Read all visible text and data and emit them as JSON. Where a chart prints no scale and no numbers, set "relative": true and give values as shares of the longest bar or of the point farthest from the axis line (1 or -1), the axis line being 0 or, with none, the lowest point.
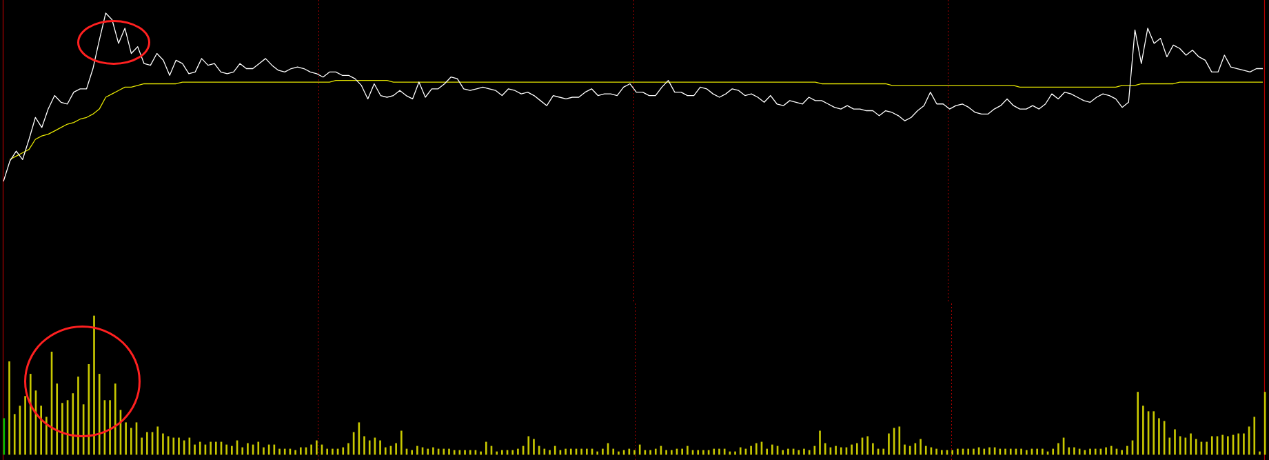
{
  "chart_data": [
    {
      "type": "line",
      "relative": true,
      "grid": "x",
      "legend": false,
      "marker": "none",
      "line_style": "solid",
      "categories": [
        null,
        null,
        null,
        null,
        null,
        null,
        null,
        null,
        null,
        null,
        null,
        null,
        null,
        null,
        null,
        null,
        null,
        null,
        null,
        null,
        null,
        null,
        null,
        null,
        null,
        null,
        null,
        null,
        null,
        null,
        null,
        null,
        null,
        null,
        null,
        null,
        null,
        null,
        null,
        null,
        null,
        null,
        null,
        null,
        null,
        null,
        null,
        null,
        null,
        null,
        null,
        null,
        null,
        null,
        null,
        null,
        null,
        null,
        null,
        null,
        null,
        null,
        null,
        null,
        null,
        null,
        null,
        null,
        null,
        null,
        null,
        null,
        null,
        null,
        null,
        null,
        null,
        null,
        null,
        null,
        null,
        null,
        null,
        null,
        null,
        null,
        null,
        null,
        null,
        null,
        null,
        null,
        null,
        null,
        null,
        null,
        null,
        null,
        null,
        null,
        null,
        null,
        null,
        null,
        null,
        null,
        null,
        null,
        null,
        null,
        null,
        null,
        null,
        null,
        null,
        null,
        null,
        null,
        null,
        null,
        null,
        null,
        null,
        null,
        null,
        null,
        null,
        null,
        null,
        null,
        null,
        null,
        null,
        null,
        null,
        null,
        null,
        null,
        null,
        null,
        null,
        null,
        null,
        null,
        null,
        null,
        null,
        null,
        null,
        null,
        null,
        null,
        null,
        null,
        null,
        null,
        null,
        null,
        null,
        null,
        null,
        null,
        null,
        null,
        null,
        null,
        null,
        null,
        null,
        null,
        null,
        null,
        null,
        null,
        null,
        null,
        null,
        null,
        null,
        null,
        null,
        null,
        null,
        null,
        null,
        null,
        null,
        null,
        null,
        null,
        null,
        null,
        null,
        null,
        null,
        null,
        null,
        null
      ],
      "series": [
        {
          "color": "#ffffff",
          "values": [
            0,
            0.12,
            0.18,
            0.13,
            0.25,
            0.38,
            0.32,
            0.43,
            0.51,
            0.47,
            0.46,
            0.53,
            0.55,
            0.55,
            0.67,
            0.84,
            1,
            0.96,
            0.82,
            0.91,
            0.76,
            0.8,
            0.7,
            0.69,
            0.76,
            0.72,
            0.63,
            0.72,
            0.7,
            0.64,
            0.65,
            0.73,
            0.69,
            0.7,
            0.65,
            0.64,
            0.65,
            0.7,
            0.67,
            0.67,
            0.7,
            0.73,
            0.69,
            0.66,
            0.65,
            0.67,
            0.68,
            0.67,
            0.65,
            0.64,
            0.62,
            0.65,
            0.65,
            0.63,
            0.63,
            0.61,
            0.57,
            0.49,
            0.58,
            0.51,
            0.5,
            0.51,
            0.54,
            0.51,
            0.49,
            0.59,
            0.5,
            0.55,
            0.55,
            0.58,
            0.62,
            0.61,
            0.55,
            0.54,
            0.55,
            0.56,
            0.55,
            0.54,
            0.51,
            0.55,
            0.54,
            0.52,
            0.53,
            0.51,
            0.48,
            0.45,
            0.51,
            0.5,
            0.49,
            0.5,
            0.5,
            0.53,
            0.55,
            0.51,
            0.52,
            0.52,
            0.51,
            0.56,
            0.58,
            0.53,
            0.53,
            0.51,
            0.51,
            0.56,
            0.6,
            0.53,
            0.53,
            0.51,
            0.51,
            0.56,
            0.55,
            0.52,
            0.5,
            0.52,
            0.55,
            0.54,
            0.51,
            0.52,
            0.5,
            0.47,
            0.51,
            0.46,
            0.45,
            0.48,
            0.47,
            0.46,
            0.5,
            0.48,
            0.48,
            0.46,
            0.44,
            0.43,
            0.45,
            0.43,
            0.43,
            0.42,
            0.42,
            0.39,
            0.42,
            0.41,
            0.39,
            0.36,
            0.38,
            0.42,
            0.45,
            0.53,
            0.46,
            0.46,
            0.43,
            0.45,
            0.46,
            0.44,
            0.41,
            0.4,
            0.4,
            0.43,
            0.45,
            0.49,
            0.45,
            0.43,
            0.43,
            0.45,
            0.43,
            0.46,
            0.52,
            0.49,
            0.53,
            0.52,
            0.5,
            0.48,
            0.47,
            0.5,
            0.52,
            0.51,
            0.49,
            0.44,
            0.47,
            0.9,
            0.7,
            0.91,
            0.82,
            0.85,
            0.74,
            0.81,
            0.79,
            0.75,
            0.78,
            0.74,
            0.72,
            0.65,
            0.65,
            0.75,
            0.68,
            0.67,
            0.66,
            0.65,
            0.67,
            0.67
          ]
        },
        {
          "color": "#e6e600",
          "values": [
            null,
            0.13,
            0.15,
            0.17,
            0.19,
            0.25,
            0.27,
            0.28,
            0.3,
            0.32,
            0.34,
            0.35,
            0.37,
            0.38,
            0.4,
            0.43,
            0.5,
            0.52,
            0.54,
            0.56,
            0.56,
            0.57,
            0.58,
            0.58,
            0.58,
            0.58,
            0.58,
            0.58,
            0.59,
            0.59,
            0.59,
            0.59,
            0.59,
            0.59,
            0.59,
            0.59,
            0.59,
            0.59,
            0.59,
            0.59,
            0.59,
            0.59,
            0.59,
            0.59,
            0.59,
            0.59,
            0.59,
            0.59,
            0.59,
            0.59,
            0.59,
            0.59,
            0.6,
            0.6,
            0.6,
            0.6,
            0.6,
            0.6,
            0.6,
            0.6,
            0.6,
            0.59,
            0.59,
            0.59,
            0.59,
            0.59,
            0.59,
            0.59,
            0.59,
            0.59,
            0.59,
            0.59,
            0.59,
            0.59,
            0.59,
            0.59,
            0.59,
            0.59,
            0.59,
            0.59,
            0.59,
            0.59,
            0.59,
            0.59,
            0.59,
            0.59,
            0.59,
            0.59,
            0.59,
            0.59,
            0.59,
            0.59,
            0.59,
            0.59,
            0.59,
            0.59,
            0.59,
            0.59,
            0.59,
            0.59,
            0.59,
            0.59,
            0.59,
            0.59,
            0.59,
            0.59,
            0.59,
            0.59,
            0.59,
            0.59,
            0.59,
            0.59,
            0.59,
            0.59,
            0.59,
            0.59,
            0.59,
            0.59,
            0.59,
            0.59,
            0.59,
            0.59,
            0.59,
            0.59,
            0.59,
            0.59,
            0.59,
            0.59,
            0.58,
            0.58,
            0.58,
            0.58,
            0.58,
            0.58,
            0.58,
            0.58,
            0.58,
            0.58,
            0.58,
            0.57,
            0.57,
            0.57,
            0.57,
            0.57,
            0.57,
            0.57,
            0.57,
            0.57,
            0.57,
            0.57,
            0.57,
            0.57,
            0.57,
            0.57,
            0.57,
            0.57,
            0.57,
            0.57,
            0.57,
            0.56,
            0.56,
            0.56,
            0.56,
            0.56,
            0.56,
            0.56,
            0.56,
            0.56,
            0.56,
            0.56,
            0.56,
            0.56,
            0.56,
            0.56,
            0.56,
            0.57,
            0.57,
            0.57,
            0.58,
            0.58,
            0.58,
            0.58,
            0.58,
            0.58,
            0.59,
            0.59,
            0.59,
            0.59,
            0.59,
            0.59,
            0.59,
            0.59,
            0.59,
            0.59,
            0.59,
            0.59,
            0.59,
            0.59
          ]
        }
      ]
    },
    {
      "type": "bar",
      "relative": true,
      "grid": "x",
      "legend": false,
      "categories": [
        null,
        null,
        null,
        null,
        null,
        null,
        null,
        null,
        null,
        null,
        null,
        null,
        null,
        null,
        null,
        null,
        null,
        null,
        null,
        null,
        null,
        null,
        null,
        null,
        null,
        null,
        null,
        null,
        null,
        null,
        null,
        null,
        null,
        null,
        null,
        null,
        null,
        null,
        null,
        null,
        null,
        null,
        null,
        null,
        null,
        null,
        null,
        null,
        null,
        null,
        null,
        null,
        null,
        null,
        null,
        null,
        null,
        null,
        null,
        null,
        null,
        null,
        null,
        null,
        null,
        null,
        null,
        null,
        null,
        null,
        null,
        null,
        null,
        null,
        null,
        null,
        null,
        null,
        null,
        null,
        null,
        null,
        null,
        null,
        null,
        null,
        null,
        null,
        null,
        null,
        null,
        null,
        null,
        null,
        null,
        null,
        null,
        null,
        null,
        null,
        null,
        null,
        null,
        null,
        null,
        null,
        null,
        null,
        null,
        null,
        null,
        null,
        null,
        null,
        null,
        null,
        null,
        null,
        null,
        null,
        null,
        null,
        null,
        null,
        null,
        null,
        null,
        null,
        null,
        null,
        null,
        null,
        null,
        null,
        null,
        null,
        null,
        null,
        null,
        null,
        null,
        null,
        null,
        null,
        null,
        null,
        null,
        null,
        null,
        null,
        null,
        null,
        null,
        null,
        null,
        null,
        null,
        null,
        null,
        null,
        null,
        null,
        null,
        null,
        null,
        null,
        null,
        null,
        null,
        null,
        null,
        null,
        null,
        null,
        null,
        null,
        null,
        null,
        null,
        null,
        null,
        null,
        null,
        null,
        null,
        null,
        null,
        null,
        null,
        null,
        null,
        null,
        null,
        null,
        null,
        null,
        null,
        null,
        null,
        null,
        null,
        null,
        null,
        null,
        null,
        null,
        null,
        null,
        null,
        null,
        null,
        null,
        null,
        null,
        null,
        null,
        null,
        null,
        null,
        null,
        null,
        null,
        null,
        null,
        null,
        null,
        null,
        null,
        null,
        null,
        null,
        null,
        null,
        null,
        null,
        null,
        null,
        null,
        null
      ],
      "values": [
        0.26,
        0.67,
        0.29,
        0.35,
        0.42,
        0.58,
        0.46,
        0.35,
        0.27,
        0.74,
        0.51,
        0.37,
        0.39,
        0.44,
        0.56,
        0.36,
        0.65,
        1,
        0.58,
        0.39,
        0.39,
        0.51,
        0.32,
        0.23,
        0.19,
        0.23,
        0.12,
        0.16,
        0.16,
        0.2,
        0.15,
        0.13,
        0.12,
        0.12,
        0.1,
        0.12,
        0.07,
        0.09,
        0.07,
        0.09,
        0.09,
        0.09,
        0.07,
        0.06,
        0.1,
        0.05,
        0.08,
        0.07,
        0.09,
        0.05,
        0.07,
        0.07,
        0.04,
        0.04,
        0.04,
        0.03,
        0.05,
        0.05,
        0.07,
        0.1,
        0.07,
        0.04,
        0.04,
        0.04,
        0.05,
        0.08,
        0.16,
        0.23,
        0.13,
        0.1,
        0.12,
        0.1,
        0.05,
        0.06,
        0.08,
        0.17,
        0.04,
        0.03,
        0.06,
        0.05,
        0.04,
        0.05,
        0.04,
        0.04,
        0.04,
        0.03,
        0.03,
        0.03,
        0.03,
        0.03,
        0.02,
        0.09,
        0.06,
        0.02,
        0.03,
        0.03,
        0.03,
        0.04,
        0.06,
        0.13,
        0.11,
        0.06,
        0.04,
        0.03,
        0.06,
        0.03,
        0.04,
        0.04,
        0.04,
        0.04,
        0.04,
        0.04,
        0.02,
        0.04,
        0.08,
        0.04,
        0.02,
        0.03,
        0.04,
        0.03,
        0.07,
        0.03,
        0.03,
        0.04,
        0.06,
        0.03,
        0.03,
        0.04,
        0.04,
        0.06,
        0.03,
        0.03,
        0.03,
        0.03,
        0.04,
        0.04,
        0.04,
        0.02,
        0.02,
        0.05,
        0.04,
        0.06,
        0.08,
        0.09,
        0.04,
        0.07,
        0.06,
        0.03,
        0.04,
        0.04,
        0.03,
        0.04,
        0.03,
        0.06,
        0.17,
        0.08,
        0.05,
        0.06,
        0.05,
        0.05,
        0.07,
        0.08,
        0.12,
        0.13,
        0.08,
        0.04,
        0.04,
        0.15,
        0.19,
        0.2,
        0.07,
        0.06,
        0.08,
        0.11,
        0.06,
        0.05,
        0.04,
        0.03,
        0.03,
        0.03,
        0.04,
        0.04,
        0.04,
        0.04,
        0.05,
        0.04,
        0.05,
        0.05,
        0.04,
        0.04,
        0.04,
        0.04,
        0.04,
        0.03,
        0.04,
        0.04,
        0.04,
        0.02,
        0.04,
        0.08,
        0.12,
        0.05,
        0.05,
        0.04,
        0.03,
        0.04,
        0.04,
        0.04,
        0.05,
        0.06,
        0.04,
        0.03,
        0.06,
        0.1,
        0.45,
        0.35,
        0.31,
        0.31,
        0.26,
        0.24,
        0.12,
        0.18,
        0.13,
        0.12,
        0.15,
        0.11,
        0.09,
        0.09,
        0.13,
        0.13,
        0.14,
        0.13,
        0.14,
        0.15,
        0.15,
        0.2,
        0.27,
        0.02,
        0.45
      ],
      "colors": [
        "#00c000",
        "#c8c800",
        "#c8c800",
        "#c8c800",
        "#c8c800",
        "#c8c800",
        "#c8c800",
        "#c8c800",
        "#c8c800",
        "#c8c800",
        "#c8c800",
        "#c8c800",
        "#c8c800",
        "#c8c800",
        "#c8c800",
        "#c8c800",
        "#c8c800",
        "#c8c800",
        "#c8c800",
        "#c8c800",
        "#c8c800",
        "#c8c800",
        "#c8c800",
        "#c8c800",
        "#c8c800",
        "#c8c800",
        "#c8c800",
        "#c8c800",
        "#c8c800",
        "#c8c800",
        "#c8c800",
        "#c8c800",
        "#c8c800",
        "#c8c800",
        "#c8c800",
        "#c8c800",
        "#c8c800",
        "#c8c800",
        "#c8c800",
        "#c8c800",
        "#c8c800",
        "#c8c800",
        "#c8c800",
        "#c8c800",
        "#c8c800",
        "#c8c800",
        "#c8c800",
        "#c8c800",
        "#c8c800",
        "#c8c800",
        "#c8c800",
        "#c8c800",
        "#c8c800",
        "#c8c800",
        "#c8c800",
        "#c8c800",
        "#c8c800",
        "#c8c800",
        "#c8c800",
        "#c8c800",
        "#c8c800",
        "#c8c800",
        "#c8c800",
        "#c8c800",
        "#c8c800",
        "#c8c800",
        "#c8c800",
        "#c8c800",
        "#c8c800",
        "#c8c800",
        "#c8c800",
        "#c8c800",
        "#c8c800",
        "#c8c800",
        "#c8c800",
        "#c8c800",
        "#c8c800",
        "#c8c800",
        "#c8c800",
        "#c8c800",
        "#c8c800",
        "#c8c800",
        "#c8c800",
        "#c8c800",
        "#c8c800",
        "#c8c800",
        "#c8c800",
        "#c8c800",
        "#c8c800",
        "#c8c800",
        "#c8c800",
        "#c8c800",
        "#c8c800",
        "#c8c800",
        "#c8c800",
        "#c8c800",
        "#c8c800",
        "#c8c800",
        "#c8c800",
        "#c8c800",
        "#c8c800",
        "#c8c800",
        "#c8c800",
        "#c8c800",
        "#c8c800",
        "#c8c800",
        "#c8c800",
        "#c8c800",
        "#c8c800",
        "#c8c800",
        "#c8c800",
        "#c8c800",
        "#c8c800",
        "#c8c800",
        "#c8c800",
        "#c8c800",
        "#c8c800",
        "#c8c800",
        "#c8c800",
        "#c8c800",
        "#c8c800",
        "#c8c800",
        "#c8c800",
        "#c8c800",
        "#c8c800",
        "#c8c800",
        "#c8c800",
        "#c8c800",
        "#c8c800",
        "#c8c800",
        "#c8c800",
        "#c8c800",
        "#c8c800",
        "#c8c800",
        "#c8c800",
        "#c8c800",
        "#c8c800",
        "#c8c800",
        "#c8c800",
        "#c8c800",
        "#c8c800",
        "#c8c800",
        "#c8c800",
        "#c8c800",
        "#c8c800",
        "#c8c800",
        "#c8c800",
        "#c8c800",
        "#c8c800",
        "#c8c800",
        "#c8c800",
        "#c8c800",
        "#c8c800",
        "#c8c800",
        "#c8c800",
        "#c8c800",
        "#c8c800",
        "#c8c800",
        "#c8c800",
        "#c8c800",
        "#c8c800",
        "#c8c800",
        "#c8c800",
        "#c8c800",
        "#c8c800",
        "#c8c800",
        "#c8c800",
        "#c8c800",
        "#c8c800",
        "#c8c800",
        "#c8c800",
        "#c8c800",
        "#c8c800",
        "#c8c800",
        "#c8c800",
        "#c8c800",
        "#c8c800",
        "#c8c800",
        "#c8c800",
        "#c8c800",
        "#c8c800",
        "#c8c800",
        "#c8c800",
        "#c8c800",
        "#c8c800",
        "#c8c800",
        "#c8c800",
        "#c8c800",
        "#c8c800",
        "#c8c800",
        "#c8c800",
        "#c8c800",
        "#c8c800",
        "#c8c800",
        "#c8c800",
        "#c8c800",
        "#c8c800",
        "#c8c800",
        "#c8c800",
        "#c8c800",
        "#c8c800",
        "#c8c800",
        "#c8c800",
        "#c8c800",
        "#c8c800",
        "#c8c800",
        "#c8c800",
        "#c8c800",
        "#c8c800",
        "#c8c800",
        "#c8c800",
        "#c8c800",
        "#c8c800",
        "#c8c800",
        "#c8c800",
        "#c8c800",
        "#c8c800",
        "#c8c800",
        "#c8c800",
        "#c8c800",
        "#c8c800",
        "#c8c800",
        "#c8c800",
        "#c8c800",
        "#c8c800",
        "#c8c800",
        "#c8c800",
        "#c8c800",
        "#c8c800",
        "#c8c800",
        "#c8c800",
        "#c8c800",
        "#c8c800",
        "#c8c800",
        "#c8c800",
        "#c8c800",
        "#c8c800",
        "#c8c800",
        "#c8c800"
      ]
    }
  ]
}
